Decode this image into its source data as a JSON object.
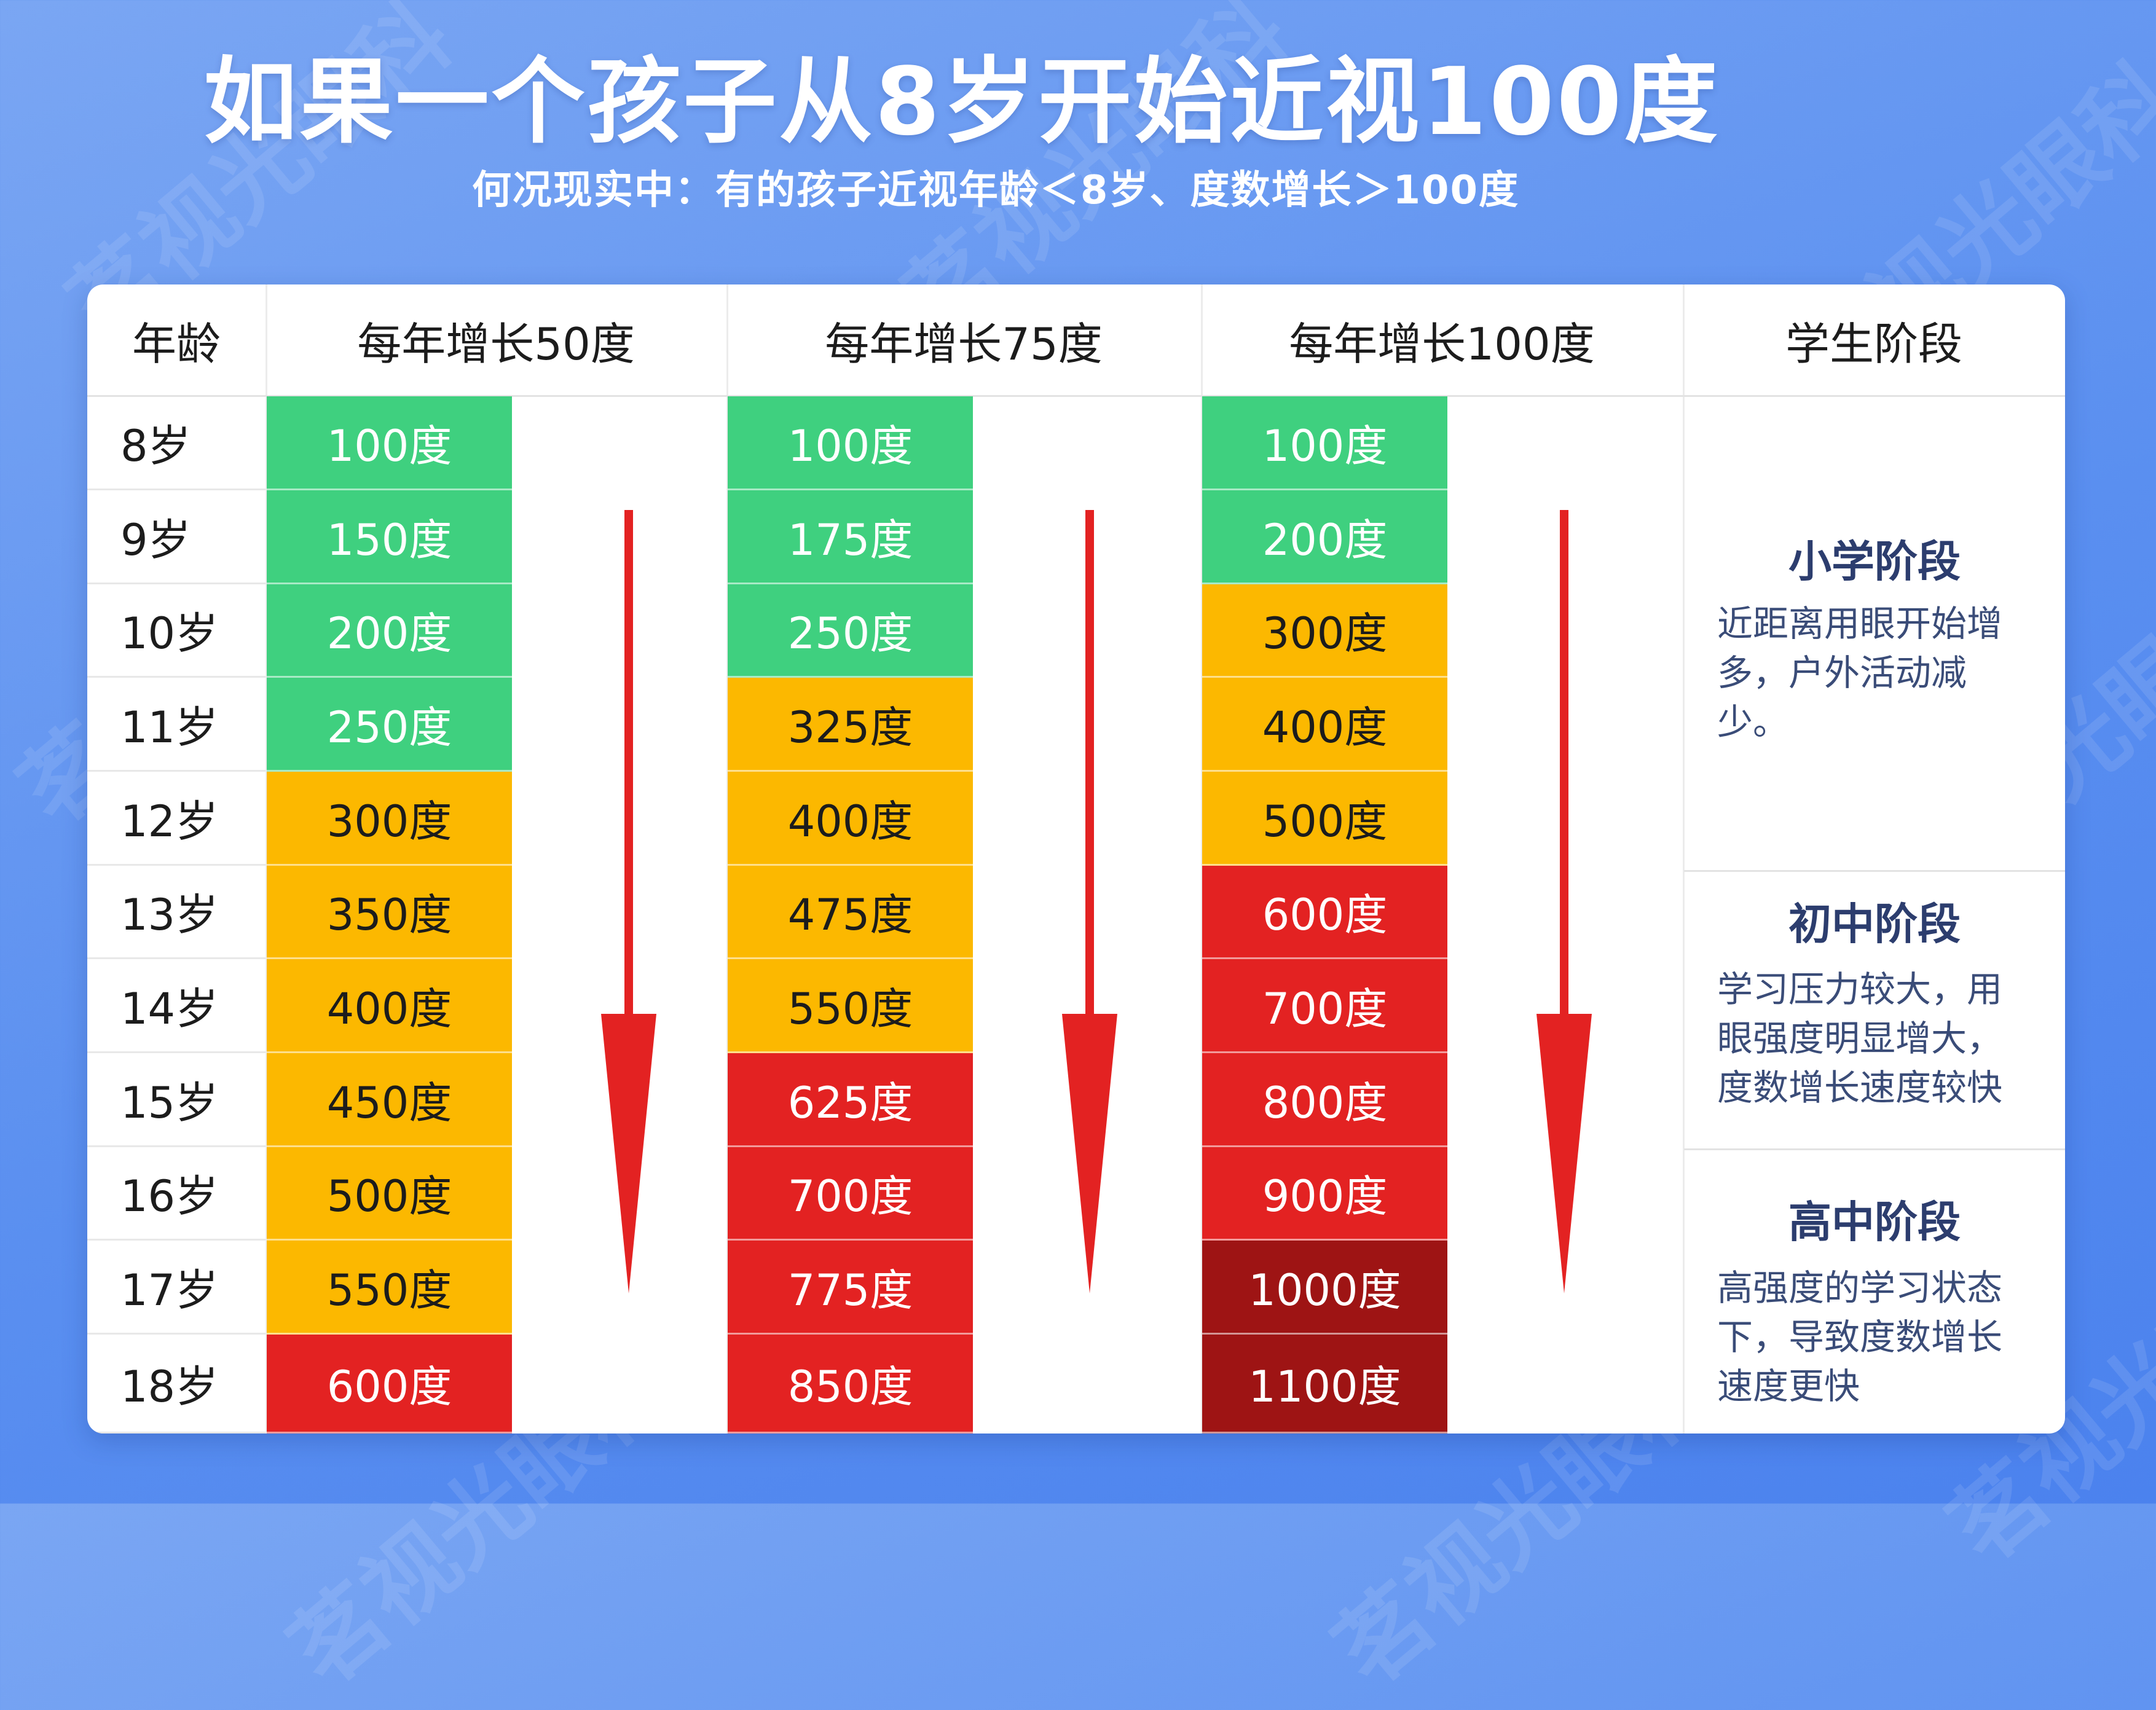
{
  "watermark": "茗视光眼科",
  "title": "如果一个孩子从8岁开始近视100度",
  "subtitle": "何况现实中：有的孩子近视年龄＜8岁、度数增长＞100度",
  "colors": {
    "green": "#3fd07f",
    "yellow": "#fcb800",
    "red": "#e32222",
    "darkred": "#9e1414",
    "arrow": "#e32222"
  },
  "chart_data": {
    "type": "table",
    "columns": [
      "年龄",
      "每年增长50度",
      "每年增长75度",
      "每年增长100度",
      "学生阶段"
    ],
    "ages": [
      "8岁",
      "9岁",
      "10岁",
      "11岁",
      "12岁",
      "13岁",
      "14岁",
      "15岁",
      "16岁",
      "17岁",
      "18岁"
    ],
    "series": [
      {
        "name": "每年增长50度",
        "labels": [
          "100度",
          "150度",
          "200度",
          "250度",
          "300度",
          "350度",
          "400度",
          "450度",
          "500度",
          "550度",
          "600度"
        ],
        "levels": [
          "green",
          "green",
          "green",
          "green",
          "yellow",
          "yellow",
          "yellow",
          "yellow",
          "yellow",
          "yellow",
          "red"
        ]
      },
      {
        "name": "每年增长75度",
        "labels": [
          "100度",
          "175度",
          "250度",
          "325度",
          "400度",
          "475度",
          "550度",
          "625度",
          "700度",
          "775度",
          "850度"
        ],
        "levels": [
          "green",
          "green",
          "green",
          "yellow",
          "yellow",
          "yellow",
          "yellow",
          "red",
          "red",
          "red",
          "red"
        ]
      },
      {
        "name": "每年增长100度",
        "labels": [
          "100度",
          "200度",
          "300度",
          "400度",
          "500度",
          "600度",
          "700度",
          "800度",
          "900度",
          "1000度",
          "1100度"
        ],
        "levels": [
          "green",
          "green",
          "yellow",
          "yellow",
          "yellow",
          "red",
          "red",
          "red",
          "red",
          "darkred",
          "darkred"
        ]
      }
    ],
    "stages": [
      {
        "title": "小学阶段",
        "desc": "近距离用眼开始增多，户外活动减少。",
        "start_row": 0,
        "end_row": 4
      },
      {
        "title": "初中阶段",
        "desc": "学习压力较大，用眼强度明显增大，度数增长速度较快",
        "start_row": 5,
        "end_row": 7
      },
      {
        "title": "高中阶段",
        "desc": "高强度的学习状态下，导致度数增长速度更快",
        "start_row": 8,
        "end_row": 10
      }
    ]
  }
}
